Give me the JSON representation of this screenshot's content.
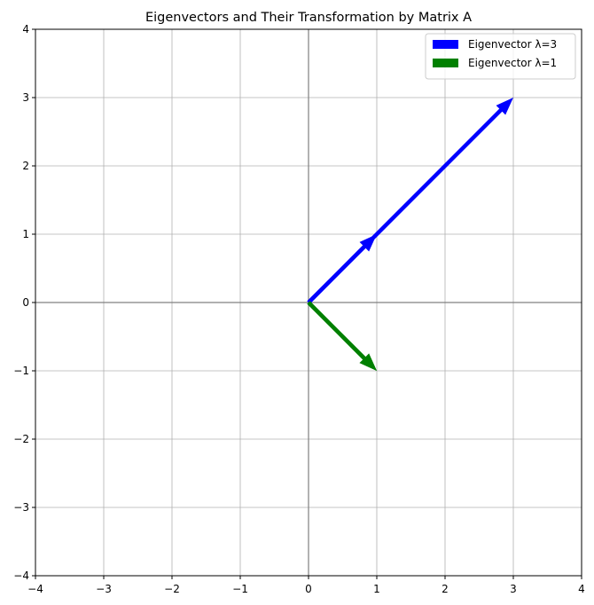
{
  "chart_data": {
    "type": "quiver",
    "title": "Eigenvectors and Their Transformation by Matrix A",
    "xlabel": "",
    "ylabel": "",
    "xlim": [
      -4,
      4
    ],
    "ylim": [
      -4,
      4
    ],
    "xticks": [
      -4,
      -3,
      -2,
      -1,
      0,
      1,
      2,
      3,
      4
    ],
    "yticks": [
      -4,
      -3,
      -2,
      -1,
      0,
      1,
      2,
      3,
      4
    ],
    "x_tick_labels": [
      "−4",
      "−3",
      "−2",
      "−1",
      "0",
      "1",
      "2",
      "3",
      "4"
    ],
    "y_tick_labels": [
      "−4",
      "−3",
      "−2",
      "−1",
      "0",
      "1",
      "2",
      "3",
      "4"
    ],
    "grid": true,
    "axis_lines_at_zero": true,
    "legend_position": "top-right",
    "series": [
      {
        "name": "Eigenvector λ=3",
        "color": "#0000ff",
        "arrows": [
          {
            "x0": 0,
            "y0": 0,
            "x1": 1,
            "y1": 1
          },
          {
            "x0": 0,
            "y0": 0,
            "x1": 3,
            "y1": 3
          }
        ]
      },
      {
        "name": "Eigenvector λ=1",
        "color": "#008000",
        "arrows": [
          {
            "x0": 0,
            "y0": 0,
            "x1": 1,
            "y1": -1
          },
          {
            "x0": 0,
            "y0": 0,
            "x1": 1,
            "y1": -1
          }
        ]
      }
    ]
  }
}
